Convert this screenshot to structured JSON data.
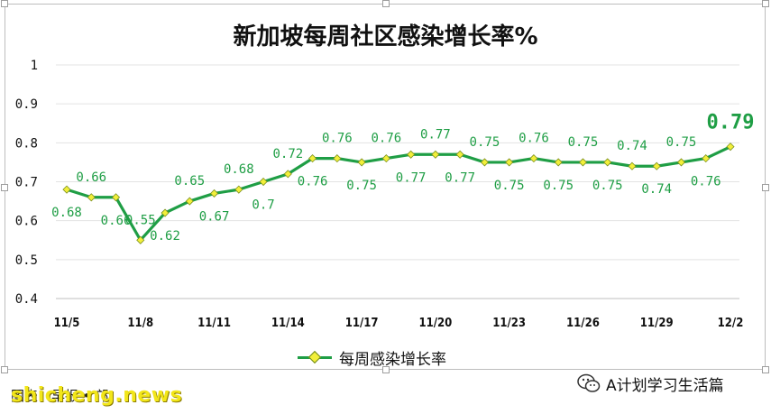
{
  "chart_data": {
    "type": "line",
    "title": "新加坡每周社区感染增长率%",
    "xlabel": "",
    "ylabel": "",
    "ylim": [
      0.4,
      1
    ],
    "yticks": [
      "0.4",
      "0.5",
      "0.6",
      "0.7",
      "0.8",
      "0.9",
      "1"
    ],
    "x": [
      "11/5",
      "11/6",
      "11/7",
      "11/8",
      "11/9",
      "11/10",
      "11/11",
      "11/12",
      "11/13",
      "11/14",
      "11/15",
      "11/16",
      "11/17",
      "11/18",
      "11/19",
      "11/20",
      "11/21",
      "11/22",
      "11/23",
      "11/24",
      "11/25",
      "11/26",
      "11/27",
      "11/28",
      "11/29",
      "11/30",
      "12/1",
      "12/2"
    ],
    "xtick_labels": [
      "11/5",
      "11/8",
      "11/11",
      "11/14",
      "11/17",
      "11/20",
      "11/23",
      "11/26",
      "11/29",
      "12/2"
    ],
    "grid": true,
    "legend_position": "bottom",
    "series": [
      {
        "name": "每周感染增长率",
        "color": "#1f9e45",
        "marker_color": "#f2ef3a",
        "values": [
          0.68,
          0.66,
          0.66,
          0.55,
          0.62,
          0.65,
          0.67,
          0.68,
          0.7,
          0.72,
          0.76,
          0.76,
          0.75,
          0.76,
          0.77,
          0.77,
          0.77,
          0.75,
          0.75,
          0.76,
          0.75,
          0.75,
          0.75,
          0.74,
          0.74,
          0.75,
          0.76,
          0.79
        ],
        "labels": [
          "0.68",
          "0.66",
          "0.66",
          "0.55",
          "0.62",
          "0.65",
          "0.67",
          "0.68",
          "0.7",
          "0.72",
          "0.76",
          "0.76",
          "0.75",
          "0.76",
          "0.77",
          "0.77",
          "0.77",
          "0.75",
          "0.75",
          "0.76",
          "0.75",
          "0.75",
          "0.75",
          "0.74",
          "0.74",
          "0.75",
          "0.76",
          "0.79"
        ]
      }
    ]
  },
  "legend": {
    "label": "每周感染增长率"
  },
  "footer": {
    "source": "图表：早报 • 邝",
    "watermark": "shicheng.news",
    "account": "A计划学习生活篇",
    "icon": "wechat-icon"
  }
}
